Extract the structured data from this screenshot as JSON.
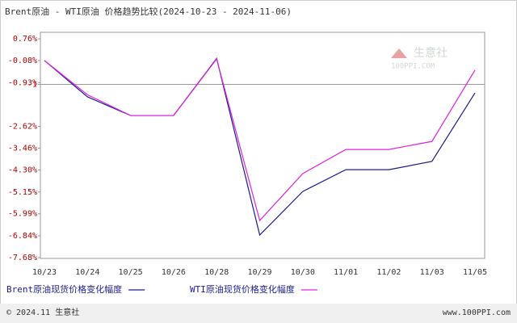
{
  "chart_data": {
    "type": "line",
    "title": "Brent原油 - WTI原油 价格趋势比较(2024-10-23 - 2024-11-06)",
    "categories": [
      "10/23",
      "10/24",
      "10/25",
      "10/26",
      "10/28",
      "10/29",
      "10/30",
      "11/01",
      "11/02",
      "11/03",
      "11/05"
    ],
    "series": [
      {
        "name": "Brent原油现货价格变化幅度",
        "color": "#1c1c90",
        "values": [
          -0.08,
          -1.48,
          -2.2,
          -2.2,
          0.0,
          -6.81,
          -5.13,
          -4.29,
          -4.29,
          -3.97,
          -1.33
        ]
      },
      {
        "name": "WTI原油现货价格变化幅度",
        "color": "#e020e0",
        "values": [
          -0.08,
          -1.4,
          -2.2,
          -2.2,
          -0.02,
          -6.25,
          -4.44,
          -3.51,
          -3.51,
          -3.2,
          -0.45
        ]
      }
    ],
    "ylim": [
      -7.68,
      0.76
    ],
    "yticks": [
      {
        "value": 0.76,
        "label": "0.76%"
      },
      {
        "value": -0.08,
        "label": "-0.08%"
      },
      {
        "value": -0.93,
        "label": "-0.93%"
      },
      -1,
      {
        "value": -2.62,
        "label": "-2.62%"
      },
      {
        "value": -3.46,
        "label": "-3.46%"
      },
      {
        "value": -4.3,
        "label": "-4.30%"
      },
      {
        "value": -5.15,
        "label": "-5.15%"
      },
      {
        "value": -5.99,
        "label": "-5.99%"
      },
      {
        "value": -6.84,
        "label": "-6.84%"
      },
      {
        "value": -7.68,
        "label": "-7.68%"
      }
    ],
    "watermark": {
      "brand": "生意社",
      "site": "100PPI.COM"
    },
    "footer": {
      "left": "© 2024.11 生意社",
      "right": "www.100PPI.com"
    }
  }
}
